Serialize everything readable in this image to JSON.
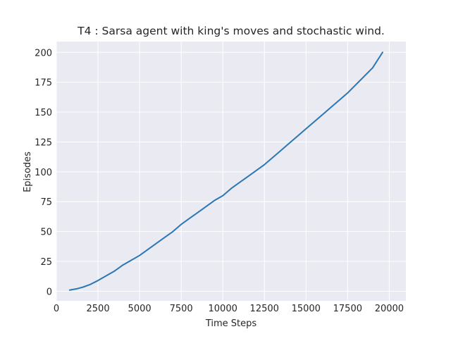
{
  "chart_data": {
    "type": "line",
    "title": "T4 : Sarsa agent with king's moves and stochastic wind.",
    "xlabel": "Time Steps",
    "ylabel": "Episodes",
    "xlim": [
      0,
      21000
    ],
    "ylim": [
      -8,
      209
    ],
    "x_ticks": [
      0,
      2500,
      5000,
      7500,
      10000,
      12500,
      15000,
      17500,
      20000
    ],
    "x_tick_labels": [
      "0",
      "2500",
      "5000",
      "7500",
      "10000",
      "12500",
      "15000",
      "17500",
      "20000"
    ],
    "y_ticks": [
      0,
      25,
      50,
      75,
      100,
      125,
      150,
      175,
      200
    ],
    "y_tick_labels": [
      "0",
      "25",
      "50",
      "75",
      "100",
      "125",
      "150",
      "175",
      "200"
    ],
    "grid": true,
    "style": "seaborn-darkgrid",
    "series": [
      {
        "color": "#2a77b4",
        "x": [
          800,
          1200,
          1600,
          2000,
          2500,
          3000,
          3500,
          4000,
          4500,
          5000,
          5500,
          6000,
          6500,
          7000,
          7500,
          8000,
          8500,
          9000,
          9500,
          10000,
          10500,
          11000,
          11500,
          12000,
          12500,
          13000,
          13500,
          14000,
          14500,
          15000,
          15500,
          16000,
          16500,
          17000,
          17500,
          18000,
          18500,
          19000,
          19600
        ],
        "values": [
          1,
          2,
          3.5,
          5.5,
          9,
          13,
          17,
          22,
          26,
          30,
          35,
          40,
          45,
          50,
          56,
          61,
          66,
          71,
          76,
          80,
          86,
          91,
          96,
          101,
          106,
          112,
          118,
          124,
          130,
          136,
          142,
          148,
          154,
          160,
          166,
          173,
          180,
          187,
          200
        ]
      }
    ]
  }
}
